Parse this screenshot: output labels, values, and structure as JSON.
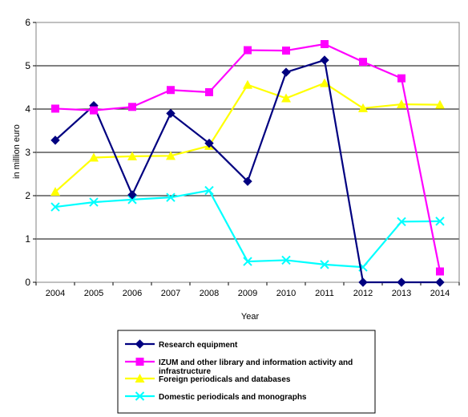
{
  "chart_data": {
    "type": "line",
    "x": [
      "2004",
      "2005",
      "2006",
      "2007",
      "2008",
      "2009",
      "2010",
      "2011",
      "2012",
      "2013",
      "2014"
    ],
    "xlabel": "Year",
    "ylabel": "in million  euro",
    "ylim": [
      0,
      6
    ],
    "yticks": [
      0,
      1,
      2,
      3,
      4,
      5,
      6
    ],
    "grid": true,
    "legend_position": "bottom",
    "series": [
      {
        "name": "Research equipment",
        "color": "#000080",
        "marker": "diamond",
        "values": [
          3.28,
          4.08,
          2.02,
          3.9,
          3.21,
          2.33,
          4.85,
          5.13,
          0,
          0,
          0
        ]
      },
      {
        "name": "IZUM and other library and information activity and infrastructure",
        "color": "#ff00ff",
        "marker": "square",
        "values": [
          4.01,
          3.97,
          4.05,
          4.44,
          4.39,
          5.36,
          5.35,
          5.5,
          5.09,
          4.71,
          0.25
        ]
      },
      {
        "name": "Foreign periodicals and databases",
        "color": "#ffff00",
        "marker": "triangle",
        "values": [
          2.09,
          2.88,
          2.91,
          2.92,
          3.15,
          4.56,
          4.25,
          4.6,
          4.02,
          4.11,
          4.1
        ]
      },
      {
        "name": "Domestic periodicals and monographs",
        "color": "#00ffff",
        "marker": "x",
        "values": [
          1.74,
          1.85,
          1.91,
          1.96,
          2.12,
          0.48,
          0.51,
          0.41,
          0.35,
          1.4,
          1.41
        ]
      }
    ]
  }
}
